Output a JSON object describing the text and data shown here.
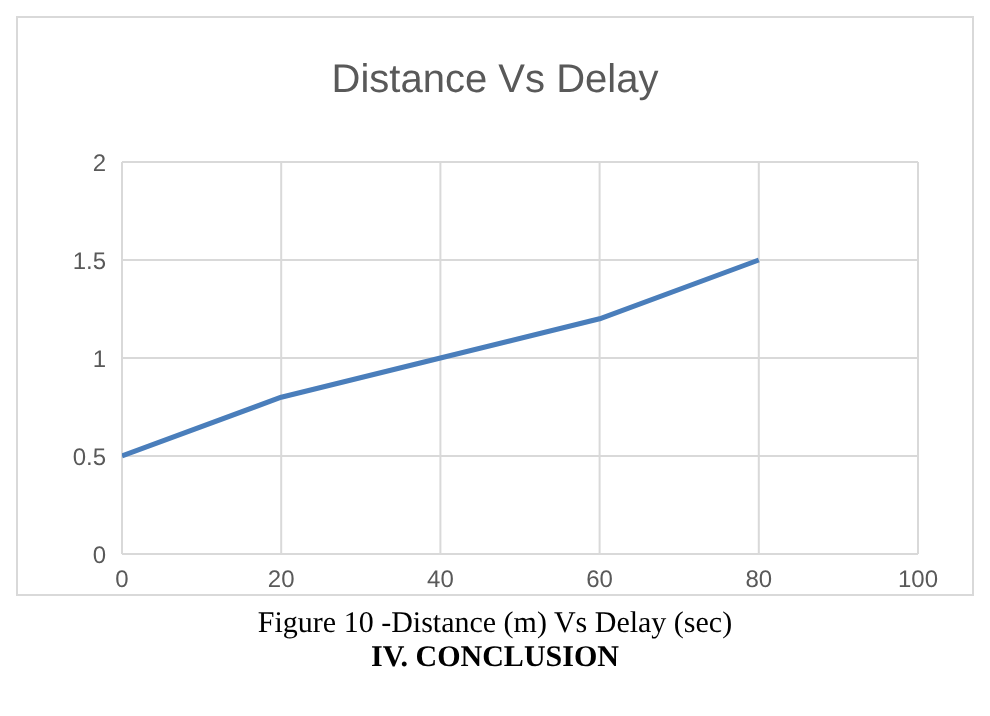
{
  "chart_data": {
    "type": "line",
    "title": "Distance Vs Delay",
    "x": [
      0,
      20,
      40,
      60,
      80
    ],
    "series": [
      {
        "color": "#4a7ebb",
        "values": [
          0.5,
          0.8,
          1,
          1.2,
          1.5
        ]
      }
    ],
    "xlim": [
      0,
      100
    ],
    "xticks": [
      0,
      20,
      40,
      60,
      80,
      100
    ],
    "ylim": [
      0,
      2
    ],
    "yticks": [
      0,
      0.5,
      1,
      1.5,
      2
    ],
    "grid": true,
    "marker": "none",
    "line_style": "solid",
    "annotations": [
      "Figure 10 -Distance (m) Vs Delay (sec)",
      "IV. CONCLUSION"
    ]
  }
}
